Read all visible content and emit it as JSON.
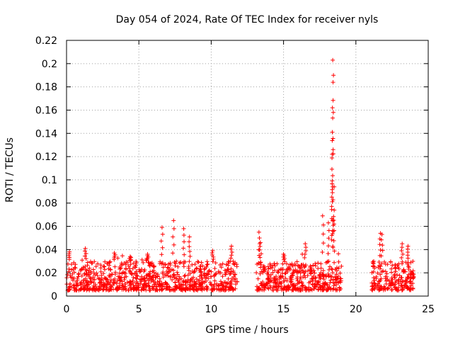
{
  "chart_data": {
    "type": "scatter",
    "title": "Day 054 of 2024, Rate Of TEC Index for receiver nyls",
    "xlabel": "GPS time / hours",
    "ylabel": "ROTI / TECUs",
    "xlim": [
      0,
      25
    ],
    "ylim": [
      0,
      0.22
    ],
    "xticks": [
      "0",
      "5",
      "10",
      "15",
      "20",
      "25"
    ],
    "yticks": [
      "0",
      "0.02",
      "0.04",
      "0.06",
      "0.08",
      "0.1",
      "0.12",
      "0.14",
      "0.16",
      "0.18",
      "0.2",
      "0.22"
    ],
    "grid": true,
    "marker": "+",
    "color": "#ff0000",
    "series": [
      {
        "values_by_segment": [
          {
            "x_range": [
              0.0,
              11.8
            ],
            "typical_y": [
              0.005,
              0.03
            ],
            "peaks": [
              {
                "x": 0.2,
                "y": 0.038
              },
              {
                "x": 1.3,
                "y": 0.041
              },
              {
                "x": 3.3,
                "y": 0.037
              },
              {
                "x": 4.4,
                "y": 0.034
              },
              {
                "x": 5.6,
                "y": 0.036
              },
              {
                "x": 6.6,
                "y": 0.059
              },
              {
                "x": 7.4,
                "y": 0.065
              },
              {
                "x": 8.1,
                "y": 0.058
              },
              {
                "x": 8.5,
                "y": 0.051
              },
              {
                "x": 10.1,
                "y": 0.039
              },
              {
                "x": 11.4,
                "y": 0.043
              }
            ]
          },
          {
            "x_range": [
              13.1,
              19.0
            ],
            "typical_y": [
              0.005,
              0.03
            ],
            "peaks": [
              {
                "x": 13.3,
                "y": 0.055
              },
              {
                "x": 13.4,
                "y": 0.046
              },
              {
                "x": 15.0,
                "y": 0.036
              },
              {
                "x": 16.5,
                "y": 0.045
              },
              {
                "x": 17.7,
                "y": 0.069
              },
              {
                "x": 18.1,
                "y": 0.063
              },
              {
                "x": 18.4,
                "y": 0.203
              },
              {
                "x": 18.45,
                "y": 0.19
              },
              {
                "x": 18.42,
                "y": 0.184
              },
              {
                "x": 18.38,
                "y": 0.162
              },
              {
                "x": 18.37,
                "y": 0.141
              },
              {
                "x": 18.36,
                "y": 0.122
              },
              {
                "x": 18.4,
                "y": 0.094
              },
              {
                "x": 18.38,
                "y": 0.089
              },
              {
                "x": 18.5,
                "y": 0.074
              }
            ]
          },
          {
            "x_range": [
              21.1,
              24.0
            ],
            "typical_y": [
              0.005,
              0.03
            ],
            "peaks": [
              {
                "x": 21.7,
                "y": 0.054
              },
              {
                "x": 21.8,
                "y": 0.053
              },
              {
                "x": 23.2,
                "y": 0.045
              },
              {
                "x": 23.6,
                "y": 0.043
              }
            ]
          }
        ]
      }
    ]
  }
}
